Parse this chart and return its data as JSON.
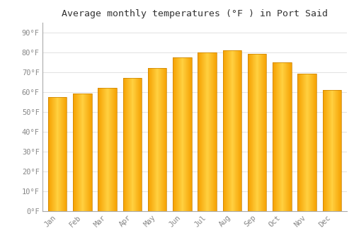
{
  "title": "Average monthly temperatures (°F ) in Port Said",
  "months": [
    "Jan",
    "Feb",
    "Mar",
    "Apr",
    "May",
    "Jun",
    "Jul",
    "Aug",
    "Sep",
    "Oct",
    "Nov",
    "Dec"
  ],
  "values": [
    57.5,
    59,
    62,
    67,
    72,
    77.5,
    80,
    81,
    79,
    75,
    69,
    61
  ],
  "bar_color_main": "#FDB827",
  "bar_color_light": "#FFD060",
  "bar_color_edge": "#E09000",
  "background_color": "#FFFFFF",
  "grid_color": "#DDDDDD",
  "ytick_labels": [
    "0°F",
    "10°F",
    "20°F",
    "30°F",
    "40°F",
    "50°F",
    "60°F",
    "70°F",
    "80°F",
    "90°F"
  ],
  "ytick_values": [
    0,
    10,
    20,
    30,
    40,
    50,
    60,
    70,
    80,
    90
  ],
  "ylim": [
    0,
    95
  ],
  "title_fontsize": 9.5
}
